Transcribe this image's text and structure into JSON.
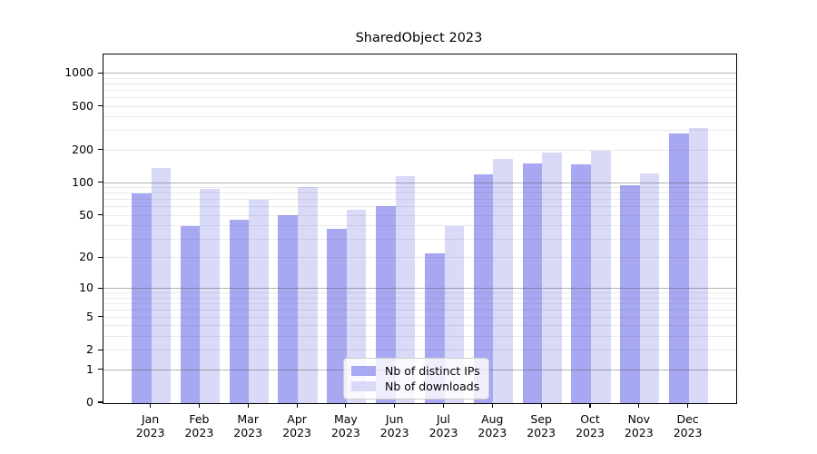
{
  "title": "SharedObject 2023",
  "chart_data": {
    "type": "bar",
    "title": "SharedObject 2023",
    "categories": [
      "Jan 2023",
      "Feb 2023",
      "Mar 2023",
      "Apr 2023",
      "May 2023",
      "Jun 2023",
      "Jul 2023",
      "Aug 2023",
      "Sep 2023",
      "Oct 2023",
      "Nov 2023",
      "Dec 2023"
    ],
    "series": [
      {
        "name": "Nb of distinct IPs",
        "color": "#a8a8f2",
        "values": [
          80,
          40,
          46,
          51,
          38,
          61,
          22,
          120,
          153,
          148,
          95,
          288
        ]
      },
      {
        "name": "Nb of downloads",
        "color": "#d9d9f8",
        "values": [
          137,
          89,
          70,
          92,
          57,
          115,
          40,
          168,
          192,
          200,
          122,
          322
        ]
      }
    ],
    "xlabel": "",
    "ylabel": "",
    "yscale": "log1p",
    "ylim": [
      0,
      1500
    ],
    "y_ticks": [
      0,
      1,
      2,
      5,
      10,
      20,
      50,
      100,
      200,
      500,
      1000
    ],
    "grid": {
      "major": [
        1,
        10,
        100,
        1000
      ],
      "minor": [
        2,
        3,
        4,
        5,
        6,
        7,
        8,
        9,
        20,
        30,
        40,
        50,
        60,
        70,
        80,
        90,
        200,
        300,
        400,
        500,
        600,
        700,
        800,
        900
      ]
    },
    "legend": {
      "position": "lower center",
      "entries": [
        "Nb of distinct IPs",
        "Nb of downloads"
      ]
    }
  }
}
